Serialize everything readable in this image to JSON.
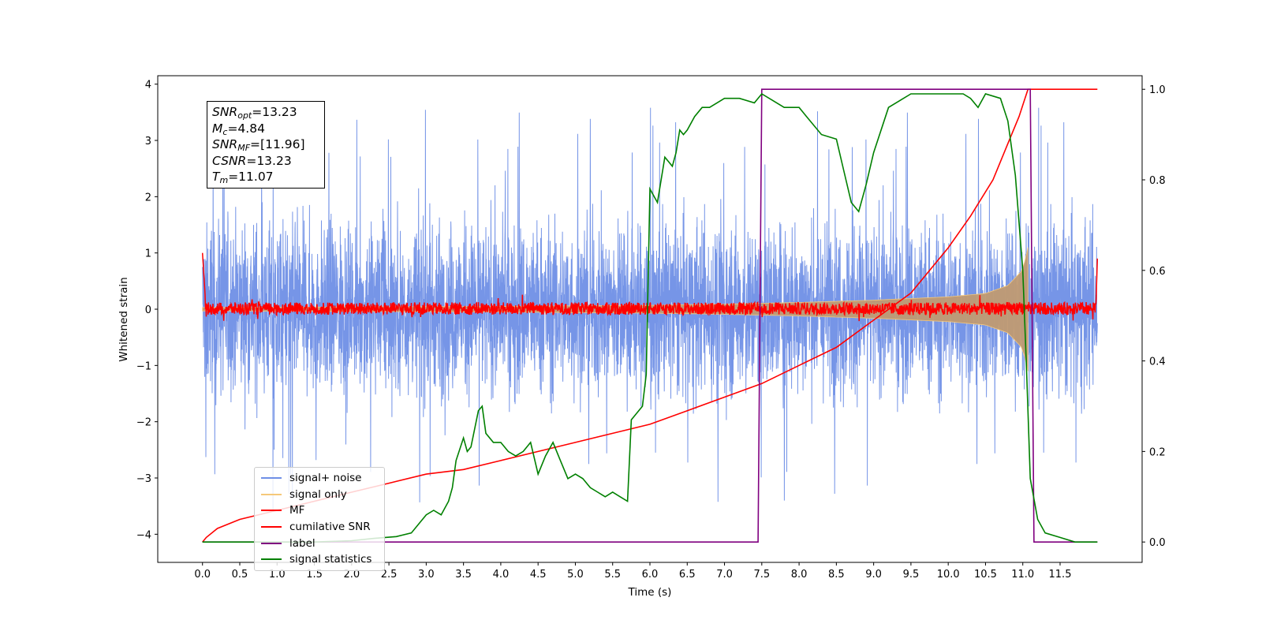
{
  "chart_data": {
    "type": "line",
    "xlabel": "Time (s)",
    "ylabel": "Whitened strain",
    "xlim": [
      -0.6,
      12.6
    ],
    "ylim_left": [
      -4.5,
      4.15
    ],
    "ylim_right": [
      -0.045,
      1.03
    ],
    "x_ticks": [
      0.0,
      0.5,
      1.0,
      1.5,
      2.0,
      2.5,
      3.0,
      3.5,
      4.0,
      4.5,
      5.0,
      5.5,
      6.0,
      6.5,
      7.0,
      7.5,
      8.0,
      8.5,
      9.0,
      9.5,
      10.0,
      10.5,
      11.0,
      11.5
    ],
    "x_tick_labels": [
      "0.0",
      "0.5",
      "1.0",
      "1.5",
      "2.0",
      "2.5",
      "3.0",
      "3.5",
      "4.0",
      "4.5",
      "5.0",
      "5.5",
      "6.0",
      "6.5",
      "7.0",
      "7.5",
      "8.0",
      "8.5",
      "9.0",
      "9.5",
      "10.0",
      "10.5",
      "11.0",
      "11.5"
    ],
    "y_ticks_left": [
      4,
      3,
      2,
      1,
      0,
      -1,
      -2,
      -3,
      -4
    ],
    "y_tick_labels_left": [
      "4",
      "3",
      "2",
      "1",
      "0",
      "−1",
      "−2",
      "−3",
      "−4"
    ],
    "y_ticks_right": [
      1.0,
      0.8,
      0.6,
      0.4,
      0.2,
      0.0
    ],
    "y_tick_labels_right": [
      "1.0",
      "0.8",
      "0.6",
      "0.4",
      "0.2",
      "0.0"
    ],
    "grid": false,
    "legend_position": "lower-left",
    "series": [
      {
        "name": "signal+ noise",
        "axis": "left",
        "color": "#6f8fe6",
        "x_range": [
          0.0,
          12.0
        ],
        "mean": 0.0,
        "typical_amplitude": [
          -2.0,
          2.0
        ],
        "extremes": [
          -4.2,
          3.8
        ]
      },
      {
        "name": "signal only",
        "axis": "left",
        "color": "#f5c87a",
        "envelope": {
          "x": [
            0.0,
            2.0,
            4.0,
            6.0,
            7.0,
            8.0,
            9.0,
            10.0,
            10.5,
            10.8,
            11.0,
            11.07
          ],
          "amplitude": [
            0.03,
            0.04,
            0.05,
            0.07,
            0.09,
            0.12,
            0.16,
            0.22,
            0.28,
            0.42,
            0.7,
            1.1
          ]
        }
      },
      {
        "name": "MF",
        "axis": "left",
        "color": "#ff0000",
        "x_range": [
          0.0,
          12.0
        ],
        "mean": 0.0,
        "typical_amplitude": [
          -0.1,
          0.15
        ],
        "edge_values": {
          "start": 1.0,
          "end": 0.9
        }
      },
      {
        "name": "cumilative SNR",
        "axis": "right",
        "color": "#ff0000",
        "x": [
          0.0,
          0.05,
          0.2,
          0.5,
          1.0,
          1.5,
          2.0,
          2.5,
          3.0,
          3.5,
          4.0,
          4.5,
          5.0,
          5.5,
          6.0,
          6.5,
          7.0,
          7.5,
          8.0,
          8.5,
          9.0,
          9.5,
          10.0,
          10.3,
          10.6,
          10.8,
          10.95,
          11.07,
          12.0
        ],
        "y": [
          0.0,
          0.01,
          0.03,
          0.05,
          0.07,
          0.09,
          0.11,
          0.13,
          0.15,
          0.16,
          0.18,
          0.2,
          0.22,
          0.24,
          0.26,
          0.29,
          0.32,
          0.35,
          0.39,
          0.43,
          0.49,
          0.55,
          0.65,
          0.72,
          0.8,
          0.88,
          0.94,
          1.0,
          1.0
        ]
      },
      {
        "name": "label",
        "axis": "right",
        "color": "#800080",
        "x": [
          0.0,
          7.45,
          7.5,
          11.1,
          11.15,
          12.0
        ],
        "y": [
          0.0,
          0.0,
          1.0,
          1.0,
          0.0,
          0.0
        ]
      },
      {
        "name": "signal statistics",
        "axis": "right",
        "color": "#008000",
        "x": [
          0.0,
          0.5,
          1.0,
          1.5,
          2.0,
          2.3,
          2.6,
          2.8,
          2.9,
          3.0,
          3.1,
          3.2,
          3.3,
          3.35,
          3.4,
          3.5,
          3.55,
          3.6,
          3.7,
          3.75,
          3.8,
          3.9,
          4.0,
          4.1,
          4.2,
          4.3,
          4.4,
          4.5,
          4.6,
          4.7,
          4.8,
          4.9,
          5.0,
          5.1,
          5.2,
          5.3,
          5.4,
          5.5,
          5.6,
          5.7,
          5.75,
          5.8,
          5.85,
          5.9,
          5.95,
          6.0,
          6.1,
          6.2,
          6.3,
          6.35,
          6.4,
          6.45,
          6.5,
          6.6,
          6.7,
          6.8,
          7.0,
          7.2,
          7.4,
          7.5,
          7.7,
          7.8,
          8.0,
          8.1,
          8.3,
          8.5,
          8.6,
          8.7,
          8.8,
          8.9,
          9.0,
          9.2,
          9.5,
          9.8,
          10.0,
          10.2,
          10.3,
          10.4,
          10.5,
          10.7,
          10.8,
          10.9,
          11.0,
          11.05,
          11.1,
          11.2,
          11.3,
          11.5,
          11.7,
          12.0
        ],
        "y": [
          0.0,
          0.0,
          0.0,
          0.0,
          0.003,
          0.008,
          0.012,
          0.02,
          0.04,
          0.06,
          0.07,
          0.06,
          0.09,
          0.12,
          0.18,
          0.23,
          0.2,
          0.21,
          0.29,
          0.3,
          0.24,
          0.22,
          0.22,
          0.2,
          0.19,
          0.2,
          0.22,
          0.15,
          0.19,
          0.22,
          0.18,
          0.14,
          0.15,
          0.14,
          0.12,
          0.11,
          0.1,
          0.11,
          0.1,
          0.09,
          0.27,
          0.28,
          0.29,
          0.3,
          0.37,
          0.78,
          0.75,
          0.85,
          0.83,
          0.86,
          0.91,
          0.9,
          0.91,
          0.94,
          0.96,
          0.96,
          0.98,
          0.98,
          0.97,
          0.99,
          0.97,
          0.96,
          0.96,
          0.94,
          0.9,
          0.89,
          0.82,
          0.75,
          0.73,
          0.79,
          0.86,
          0.96,
          0.99,
          0.99,
          0.99,
          0.99,
          0.98,
          0.96,
          0.99,
          0.98,
          0.93,
          0.81,
          0.6,
          0.38,
          0.14,
          0.05,
          0.02,
          0.01,
          0.0,
          0.0
        ]
      }
    ]
  },
  "annotation": {
    "snr_opt": {
      "symbol": "SNR",
      "sub": "opt",
      "value": "=13.23"
    },
    "mc": {
      "symbol": "M",
      "sub": "c",
      "value": "=4.84"
    },
    "snr_mf": {
      "symbol": "SNR",
      "sub": "MF",
      "value": "=[11.96]"
    },
    "csnr": {
      "symbol": "CSNR",
      "value": "=13.23"
    },
    "tm": {
      "symbol": "T",
      "sub": "m",
      "value": "=11.07"
    }
  }
}
